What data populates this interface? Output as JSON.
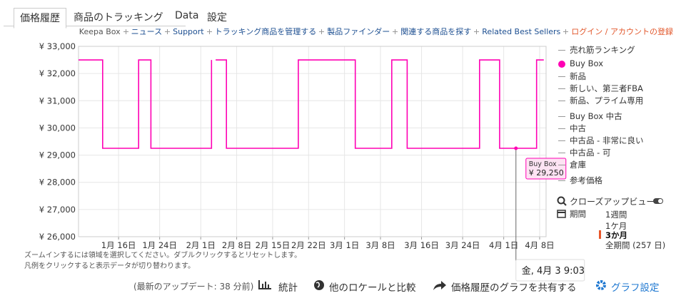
{
  "tabs": [
    "価格履歴",
    "商品のトラッキング",
    "Data",
    "設定"
  ],
  "nav": [
    "Keepa Box",
    "ニュース",
    "Support",
    "トラッキング商品を管理する",
    "製品ファインダー",
    "関連する商品を探す",
    "Related Best Sellers",
    "ログイン / アカウントの登録"
  ],
  "chart_data": {
    "type": "line",
    "x": [
      8.2,
      12.9,
      12.9,
      19.9,
      19.9,
      22.3,
      22.3,
      34.1,
      34.1,
      34.5,
      34.9,
      37.0,
      37.0,
      51.0,
      51.0,
      62.1,
      62.1,
      69.2,
      69.2,
      72.2,
      72.2,
      86.3,
      86.3,
      90.2,
      90.2,
      97.4,
      97.4,
      98.8
    ],
    "series": [
      {
        "name": "Buy Box",
        "color": "#ff00b4",
        "values": [
          32500,
          32500,
          29250,
          29250,
          32500,
          32500,
          29250,
          29250,
          32500,
          null,
          32500,
          32500,
          29250,
          29250,
          32500,
          32500,
          29250,
          29250,
          32500,
          32500,
          29250,
          29250,
          32500,
          32500,
          29250,
          29250,
          32500,
          32500
        ]
      }
    ],
    "xlim": [
      8.2,
      99.25
    ],
    "xticks": [
      {
        "value": 16,
        "label": "1月 16日"
      },
      {
        "value": 24,
        "label": "1月 24日"
      },
      {
        "value": 32,
        "label": "2月 1日"
      },
      {
        "value": 39,
        "label": "2月 8日"
      },
      {
        "value": 46,
        "label": "2月 15日"
      },
      {
        "value": 53,
        "label": "2月 22日"
      },
      {
        "value": 60,
        "label": "3月 1日"
      },
      {
        "value": 67,
        "label": "3月 8日"
      },
      {
        "value": 75,
        "label": "3月 16日"
      },
      {
        "value": 83,
        "label": "3月 24日"
      },
      {
        "value": 91,
        "label": "4月 1日"
      },
      {
        "value": 98,
        "label": "4月 8日"
      }
    ],
    "ylim": [
      26000,
      33000
    ],
    "yticks": [
      {
        "value": 26000,
        "label": "¥ 26,000"
      },
      {
        "value": 27000,
        "label": "¥ 27,000"
      },
      {
        "value": 28000,
        "label": "¥ 28,000"
      },
      {
        "value": 29000,
        "label": "¥ 29,000"
      },
      {
        "value": 30000,
        "label": "¥ 30,000"
      },
      {
        "value": 31000,
        "label": "¥ 31,000"
      },
      {
        "value": 32000,
        "label": "¥ 32,000"
      },
      {
        "value": 33000,
        "label": "¥ 33,000"
      }
    ],
    "grid": true,
    "tooltip": {
      "title": "Buy Box",
      "value": 29250,
      "label": "¥ 29,250"
    },
    "hover": {
      "x": 93.38,
      "label": "金, 4月 3 9:03"
    }
  },
  "legend_before": [
    "売れ筋ランキング"
  ],
  "legend_after": [
    "新品",
    "新しい、第三者FBA",
    "新品、プライム専用",
    "Buy Box 中古",
    "中古",
    "中古品 - 非常に良い",
    "中古品 - 可",
    "倉庫",
    "参考価格"
  ],
  "hints": [
    "ズームインするには領域を選択してください。ダブルクリックするとリセットします。",
    "凡例をクリックすると表示データが切り替わります。"
  ],
  "range_panel": {
    "closeup": "クローズアップビュー",
    "period": "期間",
    "options": [
      "1週間",
      "1ケ月",
      "3か月",
      "全期間 (257 日)"
    ],
    "selected": 2
  },
  "footer": [
    "(最新のアップデート: 38 分前)",
    "統計",
    "他のロケールと比較",
    "価格履歴のグラフを共有する",
    "グラフ設定"
  ]
}
